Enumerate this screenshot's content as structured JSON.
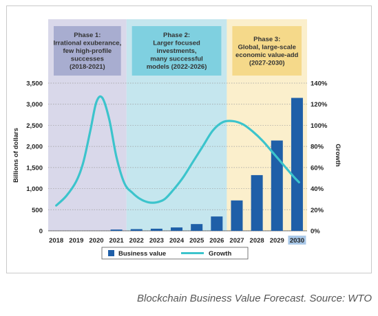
{
  "caption": "Blockchain Business Value Forecast. Source: WTO",
  "phases": [
    {
      "lines": [
        "Phase 1:",
        "Irrational exuberance,",
        "few high-profile",
        "successes",
        "(2018-2021)"
      ],
      "from": 2017.6,
      "to": 2021.5,
      "band_color": "#d9d8ea",
      "box_color": "#a8add0"
    },
    {
      "lines": [
        "Phase 2:",
        "Larger focused",
        "investments,",
        "many successful",
        "models (2022-2026)"
      ],
      "from": 2021.5,
      "to": 2026.5,
      "band_color": "#c5e6ee",
      "box_color": "#7fd0e0"
    },
    {
      "lines": [
        "Phase 3:",
        "Global, large-scale",
        "economic value-add",
        "(2027-2030)"
      ],
      "from": 2026.5,
      "to": 2030.5,
      "band_color": "#fbefcc",
      "box_color": "#f5d98a"
    }
  ],
  "chart_data": {
    "type": "bar",
    "categories": [
      "2018",
      "2019",
      "2020",
      "2021",
      "2022",
      "2023",
      "2024",
      "2025",
      "2026",
      "2027",
      "2028",
      "2029",
      "2030"
    ],
    "highlighted_category": "2030",
    "series": [
      {
        "name": "Business value",
        "kind": "bar",
        "axis": "left",
        "color": "#1f5fa8",
        "values": [
          0,
          0,
          0,
          30,
          40,
          50,
          80,
          160,
          340,
          720,
          1320,
          2140,
          3150
        ]
      },
      {
        "name": "Growth",
        "kind": "line",
        "axis": "right",
        "color": "#3cc4cc",
        "x": [
          2018,
          2018.5,
          2019,
          2019.35,
          2019.7,
          2020,
          2020.3,
          2020.65,
          2021,
          2021.4,
          2021.8,
          2022.2,
          2022.6,
          2023,
          2023.4,
          2023.8,
          2024.3,
          2024.8,
          2025.3,
          2025.8,
          2026.3,
          2026.8,
          2027.3,
          2027.8,
          2028.3,
          2028.8,
          2029.3,
          2029.8,
          2030.1
        ],
        "values": [
          24,
          33,
          47,
          65,
          95,
          122,
          126,
          105,
          70,
          45,
          36,
          30,
          27,
          27,
          30,
          38,
          50,
          65,
          80,
          95,
          103,
          104,
          101,
          94,
          85,
          74,
          63,
          52,
          46
        ]
      }
    ],
    "ylabel": "Billions of dollars",
    "y2label": "Growth",
    "ylim": [
      0,
      3500
    ],
    "y_ticks": [
      "0",
      "500",
      "1,000",
      "1,500",
      "2,000",
      "2,500",
      "3,000",
      "3,500"
    ],
    "y2lim": [
      0,
      140
    ],
    "y2_ticks": [
      "0%",
      "20%",
      "40%",
      "60%",
      "80%",
      "100%",
      "120%",
      "140%"
    ],
    "grid": true,
    "legend_placement": "bottom-center",
    "legend": [
      {
        "label": "Business value",
        "color": "#1f5fa8",
        "shape": "square"
      },
      {
        "label": "Growth",
        "color": "#3cc4cc",
        "shape": "line"
      }
    ]
  }
}
